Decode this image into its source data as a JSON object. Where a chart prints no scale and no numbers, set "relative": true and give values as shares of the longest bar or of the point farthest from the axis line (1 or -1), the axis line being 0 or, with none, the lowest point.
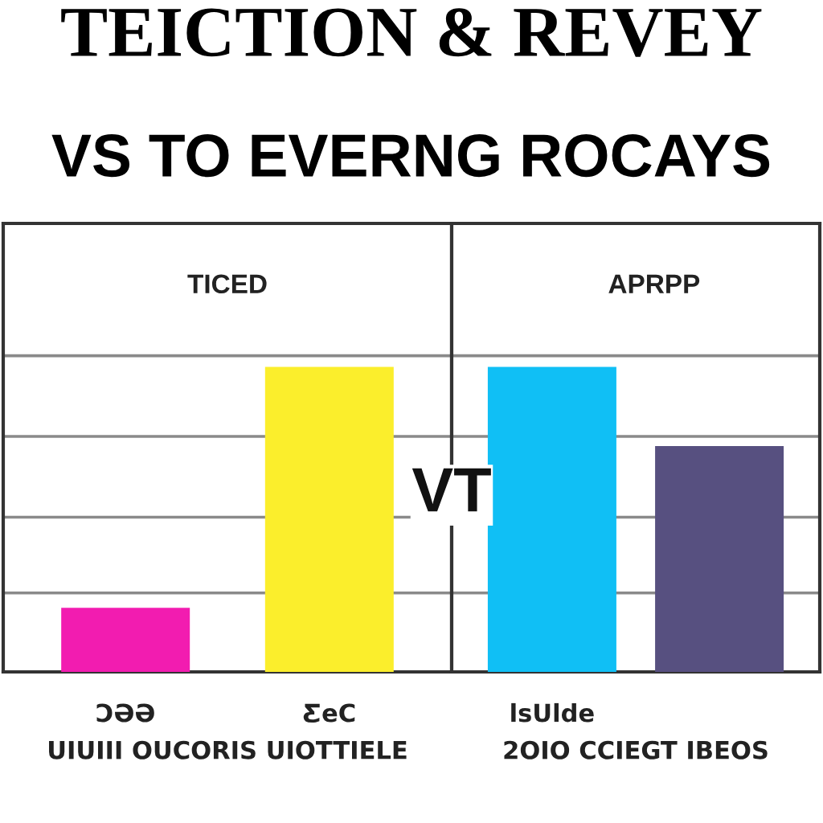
{
  "chart_data": [
    {
      "type": "bar",
      "title": "TEICTION & REVEY",
      "subtitle": "VS TO EVERNG ROCAYS",
      "annotations": [
        "TICED",
        "VT"
      ],
      "categories": [
        "ƆƏƏ",
        "ƸeC"
      ],
      "values": [
        0.21,
        1
      ],
      "colors": [
        "#f21cb0",
        "#fbee2c"
      ],
      "relative": true,
      "xlabel": "UIUIII OUCORIS UIOTTIELE",
      "grid": "y"
    },
    {
      "type": "bar",
      "annotations": [
        "APRPP"
      ],
      "categories": [
        "lsUlde",
        null
      ],
      "values": [
        1,
        0.74
      ],
      "colors": [
        "#10bff5",
        "#575080"
      ],
      "relative": true,
      "xlabel": "2OIO CCIEGT IBEOS",
      "grid": "y"
    }
  ]
}
